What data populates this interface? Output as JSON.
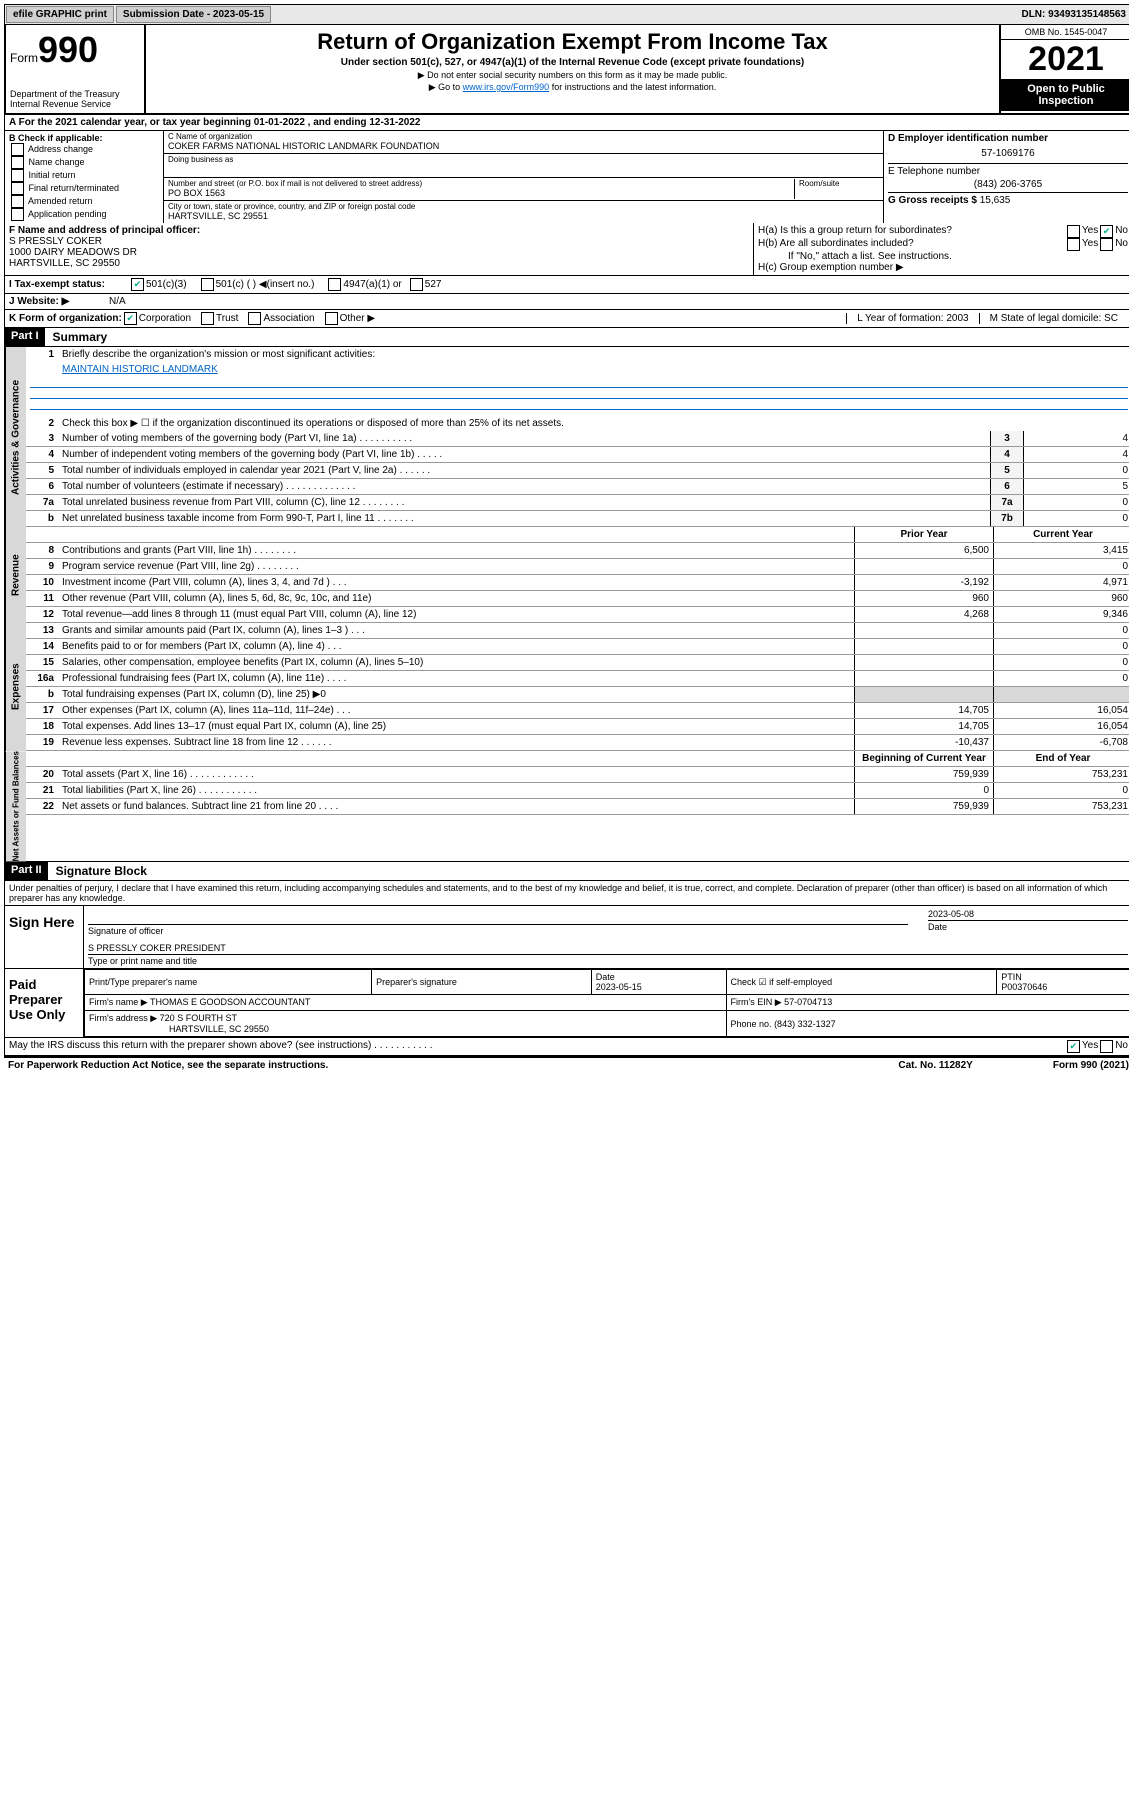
{
  "topbar": {
    "efile": "efile GRAPHIC print",
    "submission_label": "Submission Date - 2023-05-15",
    "dln": "DLN: 93493135148563"
  },
  "header": {
    "form_word": "Form",
    "form_num": "990",
    "title": "Return of Organization Exempt From Income Tax",
    "subtitle": "Under section 501(c), 527, or 4947(a)(1) of the Internal Revenue Code (except private foundations)",
    "sub1": "▶ Do not enter social security numbers on this form as it may be made public.",
    "sub2_pre": "▶ Go to ",
    "sub2_link": "www.irs.gov/Form990",
    "sub2_post": " for instructions and the latest information.",
    "dept": "Department of the Treasury",
    "irs": "Internal Revenue Service",
    "omb": "OMB No. 1545-0047",
    "year": "2021",
    "inspection": "Open to Public Inspection"
  },
  "section_a": "A For the 2021 calendar year, or tax year beginning 01-01-2022   , and ending 12-31-2022",
  "section_b": {
    "label": "B Check if applicable:",
    "opts": [
      "Address change",
      "Name change",
      "Initial return",
      "Final return/terminated",
      "Amended return",
      "Application pending"
    ]
  },
  "section_c": {
    "name_label": "C Name of organization",
    "name": "COKER FARMS NATIONAL HISTORIC LANDMARK FOUNDATION",
    "dba_label": "Doing business as",
    "dba": "",
    "addr_label": "Number and street (or P.O. box if mail is not delivered to street address)",
    "room_label": "Room/suite",
    "addr": "PO BOX 1563",
    "city_label": "City or town, state or province, country, and ZIP or foreign postal code",
    "city": "HARTSVILLE, SC  29551"
  },
  "section_d": {
    "ein_label": "D Employer identification number",
    "ein": "57-1069176",
    "phone_label": "E Telephone number",
    "phone": "(843) 206-3765",
    "gross_label": "G Gross receipts $",
    "gross": "15,635"
  },
  "section_f": {
    "label": "F  Name and address of principal officer:",
    "name": "S PRESSLY COKER",
    "addr1": "1000 DAIRY MEADOWS DR",
    "addr2": "HARTSVILLE, SC  29550"
  },
  "section_h": {
    "ha": "H(a)  Is this a group return for subordinates?",
    "hb": "H(b)  Are all subordinates included?",
    "hb_note": "If \"No,\" attach a list. See instructions.",
    "hc": "H(c)  Group exemption number ▶",
    "yes": "Yes",
    "no": "No"
  },
  "row_i": {
    "label": "I   Tax-exempt status:",
    "o1": "501(c)(3)",
    "o2": "501(c) (   ) ◀(insert no.)",
    "o3": "4947(a)(1) or",
    "o4": "527"
  },
  "row_j": {
    "label": "J   Website: ▶",
    "val": "N/A"
  },
  "row_k": {
    "label": "K Form of organization:",
    "o1": "Corporation",
    "o2": "Trust",
    "o3": "Association",
    "o4": "Other ▶",
    "l": "L Year of formation: 2003",
    "m": "M State of legal domicile: SC"
  },
  "part1": {
    "header": "Part I",
    "title": "Summary",
    "q1": "Briefly describe the organization's mission or most significant activities:",
    "mission": "MAINTAIN HISTORIC LANDMARK",
    "q2": "Check this box ▶ ☐  if the organization discontinued its operations or disposed of more than 25% of its net assets.",
    "governance": [
      {
        "n": "3",
        "t": "Number of voting members of the governing body (Part VI, line 1a)   .    .    .    .    .    .    .    .    .    .",
        "b": "3",
        "v": "4"
      },
      {
        "n": "4",
        "t": "Number of independent voting members of the governing body (Part VI, line 1b)    .    .    .    .    .",
        "b": "4",
        "v": "4"
      },
      {
        "n": "5",
        "t": "Total number of individuals employed in calendar year 2021 (Part V, line 2a)    .    .    .    .    .    .",
        "b": "5",
        "v": "0"
      },
      {
        "n": "6",
        "t": "Total number of volunteers (estimate if necessary)    .    .    .    .    .    .    .    .    .    .    .    .    .",
        "b": "6",
        "v": "5"
      },
      {
        "n": "7a",
        "t": "Total unrelated business revenue from Part VIII, column (C), line 12    .    .    .    .    .    .    .    .",
        "b": "7a",
        "v": "0"
      },
      {
        "n": "b",
        "t": "Net unrelated business taxable income from Form 990-T, Part I, line 11    .    .    .    .    .    .    .",
        "b": "7b",
        "v": "0"
      }
    ],
    "col_prior": "Prior Year",
    "col_current": "Current Year",
    "col_boc": "Beginning of Current Year",
    "col_eoy": "End of Year",
    "revenue": [
      {
        "n": "8",
        "t": "Contributions and grants (Part VIII, line 1h)    .    .    .    .    .    .    .    .",
        "p": "6,500",
        "c": "3,415"
      },
      {
        "n": "9",
        "t": "Program service revenue (Part VIII, line 2g)    .    .    .    .    .    .    .    .",
        "p": "",
        "c": "0"
      },
      {
        "n": "10",
        "t": "Investment income (Part VIII, column (A), lines 3, 4, and 7d )    .    .    .",
        "p": "-3,192",
        "c": "4,971"
      },
      {
        "n": "11",
        "t": "Other revenue (Part VIII, column (A), lines 5, 6d, 8c, 9c, 10c, and 11e)",
        "p": "960",
        "c": "960"
      },
      {
        "n": "12",
        "t": "Total revenue—add lines 8 through 11 (must equal Part VIII, column (A), line 12)",
        "p": "4,268",
        "c": "9,346"
      }
    ],
    "expenses": [
      {
        "n": "13",
        "t": "Grants and similar amounts paid (Part IX, column (A), lines 1–3 )    .    .    .",
        "p": "",
        "c": "0"
      },
      {
        "n": "14",
        "t": "Benefits paid to or for members (Part IX, column (A), line 4)    .    .    .",
        "p": "",
        "c": "0"
      },
      {
        "n": "15",
        "t": "Salaries, other compensation, employee benefits (Part IX, column (A), lines 5–10)",
        "p": "",
        "c": "0"
      },
      {
        "n": "16a",
        "t": "Professional fundraising fees (Part IX, column (A), line 11e)    .    .    .    .",
        "p": "",
        "c": "0"
      },
      {
        "n": "b",
        "t": "Total fundraising expenses (Part IX, column (D), line 25) ▶0",
        "p": "shaded",
        "c": "shaded"
      },
      {
        "n": "17",
        "t": "Other expenses (Part IX, column (A), lines 11a–11d, 11f–24e)    .    .    .",
        "p": "14,705",
        "c": "16,054"
      },
      {
        "n": "18",
        "t": "Total expenses. Add lines 13–17 (must equal Part IX, column (A), line 25)",
        "p": "14,705",
        "c": "16,054"
      },
      {
        "n": "19",
        "t": "Revenue less expenses. Subtract line 18 from line 12    .    .    .    .    .    .",
        "p": "-10,437",
        "c": "-6,708"
      }
    ],
    "netassets": [
      {
        "n": "20",
        "t": "Total assets (Part X, line 16)    .    .    .    .    .    .    .    .    .    .    .    .",
        "p": "759,939",
        "c": "753,231"
      },
      {
        "n": "21",
        "t": "Total liabilities (Part X, line 26)    .    .    .    .    .    .    .    .    .    .    .",
        "p": "0",
        "c": "0"
      },
      {
        "n": "22",
        "t": "Net assets or fund balances. Subtract line 21 from line 20    .    .    .    .",
        "p": "759,939",
        "c": "753,231"
      }
    ],
    "vtab_gov": "Activities & Governance",
    "vtab_rev": "Revenue",
    "vtab_exp": "Expenses",
    "vtab_net": "Net Assets or Fund Balances"
  },
  "part2": {
    "header": "Part II",
    "title": "Signature Block",
    "penalties": "Under penalties of perjury, I declare that I have examined this return, including accompanying schedules and statements, and to the best of my knowledge and belief, it is true, correct, and complete. Declaration of preparer (other than officer) is based on all information of which preparer has any knowledge.",
    "sign_here": "Sign Here",
    "sig_officer_label": "Signature of officer",
    "sig_date": "2023-05-08",
    "date_label": "Date",
    "officer_name": "S PRESSLY COKER  PRESIDENT",
    "type_label": "Type or print name and title",
    "paid": "Paid Preparer Use Only",
    "prep_name_label": "Print/Type preparer's name",
    "prep_sig_label": "Preparer's signature",
    "prep_date_label": "Date",
    "prep_date": "2023-05-15",
    "prep_check_label": "Check ☑ if self-employed",
    "ptin_label": "PTIN",
    "ptin": "P00370646",
    "firm_name_label": "Firm's name    ▶",
    "firm_name": "THOMAS E GOODSON ACCOUNTANT",
    "firm_ein_label": "Firm's EIN ▶",
    "firm_ein": "57-0704713",
    "firm_addr_label": "Firm's address ▶",
    "firm_addr": "720 S FOURTH ST",
    "firm_city": "HARTSVILLE, SC  29550",
    "firm_phone_label": "Phone no.",
    "firm_phone": "(843) 332-1327",
    "discuss": "May the IRS discuss this return with the preparer shown above? (see instructions)    .    .    .    .    .    .    .    .    .    .    ."
  },
  "footer": {
    "left": "For Paperwork Reduction Act Notice, see the separate instructions.",
    "mid": "Cat. No. 11282Y",
    "right": "Form 990 (2021)"
  }
}
